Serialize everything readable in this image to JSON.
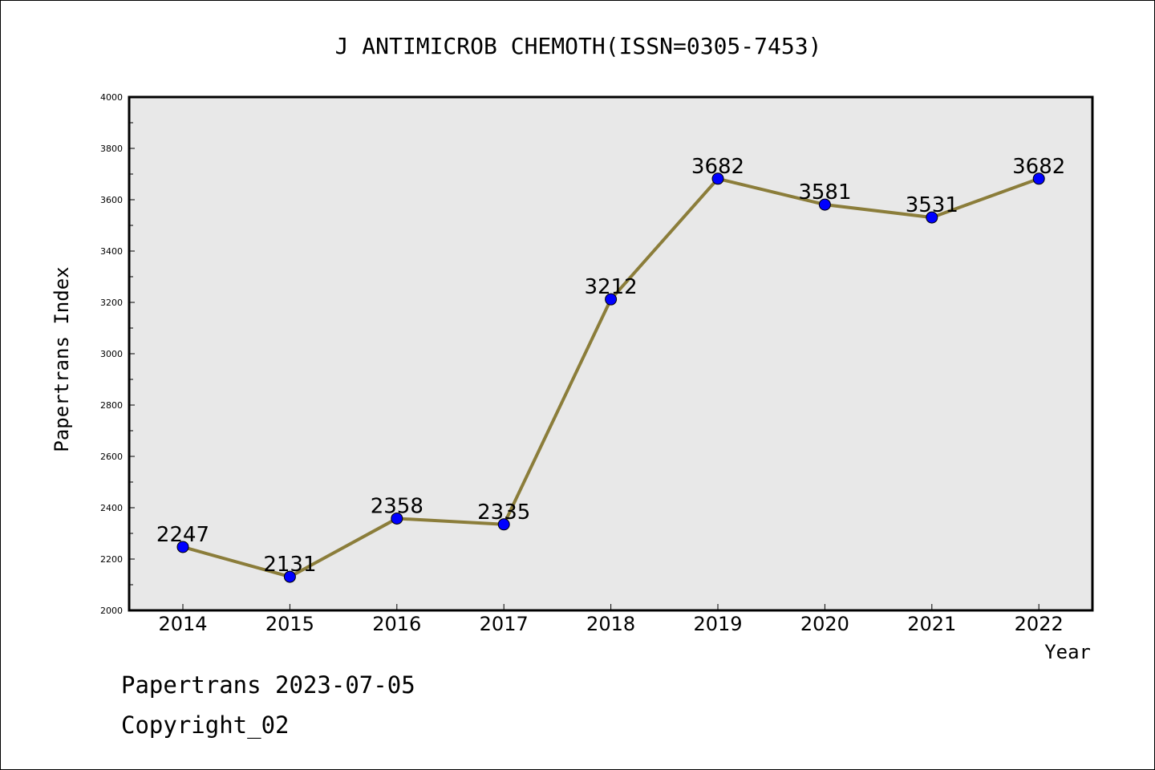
{
  "chart_data": {
    "type": "line",
    "title": "J ANTIMICROB CHEMOTH(ISSN=0305-7453)",
    "xlabel": "Year",
    "ylabel": "Papertrans Index",
    "categories": [
      "2014",
      "2015",
      "2016",
      "2017",
      "2018",
      "2019",
      "2020",
      "2021",
      "2022"
    ],
    "series": [
      {
        "values": [
          2247,
          2131,
          2358,
          2335,
          3212,
          3682,
          3581,
          3531,
          3682
        ]
      }
    ],
    "ylim": [
      2000,
      4000
    ],
    "yticks": [
      "2000",
      "2200",
      "2400",
      "2600",
      "2800",
      "3000",
      "3200",
      "3400",
      "3600",
      "3800",
      "4000"
    ],
    "grid": false,
    "colors": {
      "line": "#8b7d3a",
      "marker": "#0000ff",
      "plot_bg": "#e8e8e8"
    }
  },
  "footer": {
    "line1": "Papertrans 2023-07-05",
    "line2": "Copyright_02"
  }
}
